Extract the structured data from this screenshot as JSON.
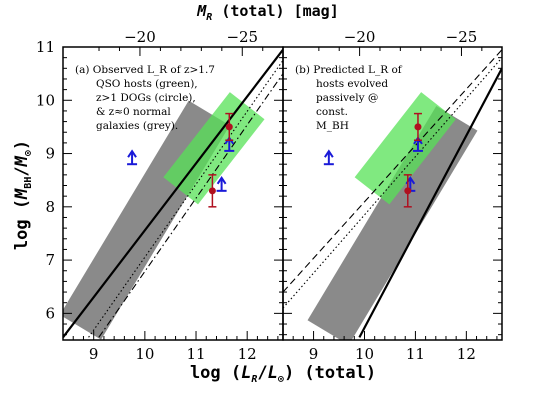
{
  "chart_data": [
    {
      "type": "scatter",
      "panel_label": "(a)",
      "annotation": [
        "(a) Observed L_R of z>1.7",
        "QSO hosts (green),",
        "z>1 DOGs (circle),",
        "& z≈0 normal",
        "galaxies (grey)."
      ],
      "xlabel": "log (L_R/L_⊙) (total)",
      "ylabel": "log (M_BH/M_⊙)",
      "top_xlabel": "M_R (total) [mag]",
      "xlim": [
        8.4,
        12.7
      ],
      "ylim": [
        5.5,
        11.0
      ],
      "x_ticks": [
        "9",
        "10",
        "11",
        "12"
      ],
      "y_ticks": [
        "6",
        "7",
        "8",
        "9",
        "10",
        "11"
      ],
      "top_ticks": [
        "−20",
        "−25"
      ],
      "grey_region": {
        "x_center": 10.0,
        "y_center": 7.75,
        "note": "normal galaxies z≈0"
      },
      "green_region": {
        "x_center": 11.35,
        "y_center": 9.1,
        "note": "QSO hosts z>1.7"
      },
      "dogs": [
        {
          "x": 11.65,
          "y": 9.5,
          "yerr": 0.25
        },
        {
          "x": 11.32,
          "y": 8.3,
          "yerr": 0.3
        }
      ],
      "lower_limits": [
        {
          "x": 9.75,
          "y": 8.8
        },
        {
          "x": 11.65,
          "y": 9.05
        },
        {
          "x": 11.5,
          "y": 8.3
        }
      ],
      "relations": [
        {
          "style": "solid",
          "points": [
            [
              8.4,
              5.55
            ],
            [
              12.7,
              10.95
            ]
          ]
        },
        {
          "style": "dotted",
          "points": [
            [
              8.9,
              5.55
            ],
            [
              12.7,
              10.75
            ]
          ]
        },
        {
          "style": "dash-dot",
          "points": [
            [
              9.1,
              5.55
            ],
            [
              12.7,
              10.5
            ]
          ]
        }
      ]
    },
    {
      "type": "scatter",
      "panel_label": "(b)",
      "annotation": [
        "(b) Predicted L_R of",
        "hosts evolved",
        "passively @",
        "const.",
        "M_BH"
      ],
      "xlabel": "log (L_R/L_⊙) (total)",
      "xlim": [
        8.4,
        12.7
      ],
      "ylim": [
        5.5,
        11.0
      ],
      "x_ticks": [
        "9",
        "10",
        "11",
        "12"
      ],
      "top_ticks": [
        "−20",
        "−25"
      ],
      "grey_region": {
        "x_center": 10.55,
        "y_center": 7.65,
        "note": "normal galaxies z≈0"
      },
      "green_region": {
        "x_center": 10.8,
        "y_center": 9.1,
        "note": "passively evolved QSO hosts"
      },
      "dogs": [
        {
          "x": 11.05,
          "y": 9.5,
          "yerr": 0.25
        },
        {
          "x": 10.85,
          "y": 8.3,
          "yerr": 0.3
        }
      ],
      "lower_limits": [
        {
          "x": 9.3,
          "y": 8.8
        },
        {
          "x": 11.05,
          "y": 9.05
        },
        {
          "x": 10.9,
          "y": 8.3
        }
      ],
      "relations": [
        {
          "style": "solid",
          "points": [
            [
              9.9,
              5.55
            ],
            [
              12.7,
              10.6
            ]
          ]
        },
        {
          "style": "dotted",
          "points": [
            [
              8.4,
              6.1
            ],
            [
              12.7,
              10.8
            ]
          ]
        },
        {
          "style": "dashed",
          "points": [
            [
              8.4,
              6.4
            ],
            [
              12.7,
              10.95
            ]
          ]
        }
      ]
    }
  ],
  "colors": {
    "grey": "#8a8a8a",
    "green": "#55e255",
    "dogs": "#b01020",
    "limits": "#1a1ad8"
  }
}
